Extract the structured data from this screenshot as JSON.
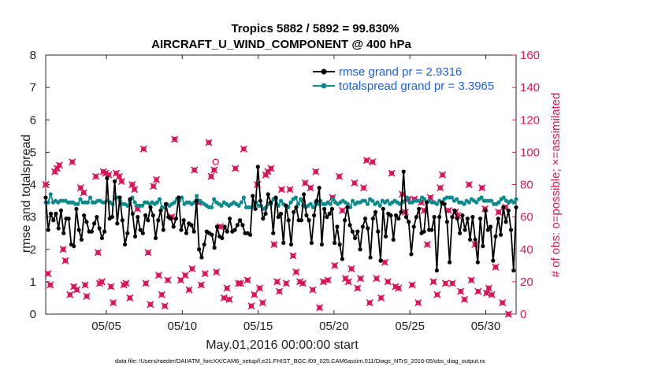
{
  "chart_data": {
    "type": "line",
    "title_line1": "Tropics 5882 / 5892 = 99.830%",
    "title_line2": "AIRCRAFT_U_WIND_COMPONENT @ 400 hPa",
    "xlabel": "May.01,2016 00:00:00 start",
    "ylabel_left": "rmse and totalspread",
    "ylabel_right": "# of obs: o=possible; ×=assimilated",
    "footnote": "data file: /Users/raeder/DAI/ATM_forcXX/CAM6_setup/f.e21.FHIST_BGC.f09_025.CAM6assim.011/Diags_NTrS_2016-05/obs_diag_output.nc",
    "xlim": [
      1,
      32
    ],
    "ylim_left": [
      0,
      8
    ],
    "ylim_right": [
      0,
      160
    ],
    "x_ticks": [
      5,
      10,
      15,
      20,
      25,
      30
    ],
    "x_tick_labels": [
      "05/05",
      "05/10",
      "05/15",
      "05/20",
      "05/25",
      "05/30"
    ],
    "y_left_ticks": [
      "0",
      "1",
      "2",
      "3",
      "4",
      "5",
      "6",
      "7",
      "8"
    ],
    "y_right_ticks": [
      "0",
      "20",
      "40",
      "60",
      "80",
      "100",
      "120",
      "140",
      "160"
    ],
    "colors": {
      "rmse": "#000000",
      "spread": "#0e8a8a",
      "obs": "#d6175a",
      "legend_text": "#1f5fd6"
    },
    "series": [
      {
        "name": "rmse grand pr = 2.9316",
        "axis": "left",
        "values": [
          3.6,
          2.6,
          3.1,
          2.9,
          3.1,
          2.65,
          3.2,
          2.5,
          2.95,
          2.95,
          2.15,
          2.1,
          3.25,
          2.6,
          2.3,
          3.05,
          2.85,
          2.55,
          2.55,
          2.8,
          3.0,
          2.65,
          2.35,
          2.55,
          4.2,
          2.95,
          3.0,
          4.1,
          2.8,
          3.6,
          2.9,
          2.15,
          2.5,
          3.55,
          3.1,
          2.4,
          3.0,
          2.6,
          2.5,
          3.05,
          2.9,
          3.3,
          3.05,
          2.35,
          2.9,
          3.2,
          2.6,
          3.4,
          3.0,
          2.95,
          2.7,
          2.95,
          3.6,
          2.6,
          2.9,
          2.5,
          2.8,
          2.75,
          2.55,
          3.5,
          2.0,
          1.75,
          2.15,
          2.55,
          2.5,
          2.45,
          2.05,
          2.7,
          2.4,
          2.35,
          2.7,
          2.55,
          2.95,
          2.55,
          2.6,
          2.75,
          2.9,
          2.75,
          2.5,
          2.5,
          2.45,
          3.65,
          3.25,
          4.55,
          3.5,
          2.95,
          3.1,
          3.7,
          3.45,
          2.5,
          3.6,
          3.0,
          3.1,
          2.2,
          3.35,
          2.9,
          2.15,
          3.15,
          3.3,
          2.9,
          2.9,
          3.7,
          3.05,
          2.9,
          2.2,
          3.05,
          3.5,
          3.9,
          2.15,
          3.25,
          3.0,
          3.1,
          3.25,
          2.2,
          2.7,
          2.15,
          1.7,
          2.9,
          3.3,
          2.75,
          2.55,
          2.35,
          2.55,
          2.0,
          2.7,
          2.95,
          2.65,
          1.75,
          2.95,
          3.15,
          2.55,
          1.65,
          3.25,
          2.4,
          3.1,
          3.05,
          2.3,
          3.05,
          2.95,
          3.15,
          4.4,
          3.0,
          2.85,
          1.85,
          2.7,
          3.0,
          3.25,
          2.5,
          2.55,
          3.45,
          2.6,
          2.6,
          3.0,
          1.35,
          3.0,
          3.45,
          3.4,
          2.85,
          1.6,
          3.0,
          3.2,
          2.95,
          2.5,
          3.05,
          2.6,
          2.95,
          2.3,
          3.0,
          2.3,
          1.6,
          2.95,
          2.1,
          3.2,
          2.6,
          2.7,
          1.65,
          2.4,
          2.95,
          2.45,
          3.3,
          2.85,
          3.2,
          2.6,
          1.35,
          3.3
        ],
        "values_note": "rmse sampled at 0.25-day intervals; sequence truncated visually to plotted range"
      },
      {
        "name": "totalspread grand pr = 3.3965",
        "axis": "left",
        "values": [
          3.45,
          3.45,
          3.7,
          3.45,
          3.5,
          3.45,
          3.5,
          3.5,
          3.5,
          3.45,
          3.45,
          3.45,
          3.4,
          3.4,
          3.55,
          3.45,
          3.45,
          3.45,
          3.6,
          3.45,
          3.45,
          3.5,
          3.5,
          3.45,
          3.45,
          3.5,
          3.45,
          3.4,
          3.6,
          3.6,
          3.5,
          3.4,
          3.4,
          3.35,
          3.5,
          3.6,
          3.45,
          3.35,
          3.35,
          3.35,
          3.45,
          3.45,
          3.4,
          3.45,
          3.4,
          3.45,
          3.55,
          3.3,
          3.3,
          3.4,
          3.35,
          3.4,
          3.45,
          3.55,
          3.5,
          3.6,
          3.4,
          3.45,
          3.45,
          3.4,
          3.45,
          3.65,
          3.5,
          3.45,
          3.4,
          3.35,
          3.3,
          3.3,
          3.55,
          3.45,
          3.4,
          3.35,
          3.45,
          3.4,
          3.35,
          3.4,
          3.45,
          3.4,
          3.35,
          3.45,
          3.6,
          3.3,
          3.3,
          3.3,
          3.35,
          3.45,
          3.35,
          3.35,
          3.25,
          3.3,
          3.4,
          3.4,
          3.55,
          3.55,
          3.35,
          3.5,
          3.4,
          3.35,
          3.3,
          3.45,
          3.55,
          3.6,
          3.4,
          3.55,
          3.35,
          3.3,
          3.35,
          3.4,
          3.3,
          3.45,
          3.4,
          3.5,
          3.4,
          3.4,
          3.45,
          3.4,
          3.55,
          3.45,
          3.4,
          3.45,
          3.5,
          3.45,
          3.4,
          3.3,
          3.5,
          3.4,
          3.45,
          3.45,
          3.5,
          3.5,
          3.4,
          3.55,
          3.5,
          3.4,
          3.45,
          3.35,
          3.5,
          3.45,
          3.5,
          3.4,
          3.45,
          3.5,
          3.45,
          3.4,
          3.45,
          3.5,
          3.6,
          3.45,
          3.45,
          3.5,
          3.5,
          3.5,
          3.6,
          3.55,
          3.45,
          3.5,
          3.45,
          3.45,
          3.4,
          3.5,
          3.4,
          3.55,
          3.6,
          3.6,
          3.6,
          3.5,
          3.55,
          3.45,
          3.45,
          3.4,
          3.5,
          3.45,
          3.55,
          3.5,
          3.45,
          3.55,
          3.6,
          3.5,
          3.5,
          3.5,
          3.5,
          3.4,
          3.4,
          3.45,
          3.55,
          3.6,
          3.5,
          3.45,
          3.5,
          3.45,
          3.55
        ]
      }
    ],
    "obs_assimilated_points": [
      [
        1.0,
        80
      ],
      [
        1.15,
        25
      ],
      [
        1.3,
        18
      ],
      [
        1.6,
        88
      ],
      [
        1.75,
        90
      ],
      [
        1.9,
        92
      ],
      [
        2.15,
        40
      ],
      [
        2.3,
        33
      ],
      [
        2.6,
        12
      ],
      [
        2.75,
        94
      ],
      [
        2.85,
        17
      ],
      [
        3.05,
        15
      ],
      [
        3.3,
        78
      ],
      [
        3.5,
        75
      ],
      [
        3.6,
        18
      ],
      [
        3.7,
        11
      ],
      [
        4.3,
        85
      ],
      [
        4.45,
        38
      ],
      [
        4.55,
        19
      ],
      [
        4.7,
        20
      ],
      [
        4.8,
        88
      ],
      [
        4.95,
        87
      ],
      [
        5.15,
        86
      ],
      [
        5.3,
        17
      ],
      [
        5.45,
        7
      ],
      [
        5.65,
        87
      ],
      [
        5.85,
        85
      ],
      [
        6.0,
        82
      ],
      [
        6.15,
        18
      ],
      [
        6.3,
        19
      ],
      [
        6.55,
        10
      ],
      [
        6.7,
        80
      ],
      [
        6.85,
        77
      ],
      [
        7.05,
        65
      ],
      [
        7.45,
        102
      ],
      [
        7.6,
        19
      ],
      [
        7.75,
        38
      ],
      [
        7.9,
        6
      ],
      [
        8.1,
        79
      ],
      [
        8.3,
        83
      ],
      [
        8.45,
        24
      ],
      [
        8.65,
        12
      ],
      [
        8.85,
        5
      ],
      [
        9.05,
        21
      ],
      [
        9.3,
        60
      ],
      [
        9.5,
        108
      ],
      [
        9.9,
        21
      ],
      [
        10.2,
        24
      ],
      [
        10.45,
        15
      ],
      [
        10.65,
        28
      ],
      [
        10.8,
        89
      ],
      [
        11.05,
        69
      ],
      [
        11.25,
        18
      ],
      [
        11.5,
        25
      ],
      [
        11.75,
        106
      ],
      [
        11.9,
        85
      ],
      [
        12.1,
        89
      ],
      [
        12.25,
        26
      ],
      [
        12.5,
        54
      ],
      [
        12.75,
        10
      ],
      [
        12.95,
        16
      ],
      [
        13.1,
        9
      ],
      [
        13.5,
        90
      ],
      [
        13.7,
        19
      ],
      [
        13.85,
        19
      ],
      [
        14.05,
        102
      ],
      [
        14.3,
        21
      ],
      [
        14.55,
        5
      ],
      [
        14.75,
        12
      ],
      [
        14.95,
        80
      ],
      [
        15.1,
        16
      ],
      [
        15.3,
        7
      ],
      [
        15.5,
        86
      ],
      [
        15.65,
        88
      ],
      [
        15.85,
        90
      ],
      [
        16.05,
        43
      ],
      [
        16.25,
        20
      ],
      [
        16.4,
        14
      ],
      [
        16.55,
        77
      ],
      [
        16.85,
        19
      ],
      [
        17.1,
        77
      ],
      [
        17.3,
        36
      ],
      [
        17.5,
        26
      ],
      [
        17.75,
        20
      ],
      [
        17.95,
        19
      ],
      [
        18.1,
        81
      ],
      [
        18.45,
        78
      ],
      [
        18.6,
        15
      ],
      [
        18.8,
        88
      ],
      [
        19.05,
        4
      ],
      [
        19.3,
        20
      ],
      [
        19.6,
        21
      ],
      [
        19.9,
        72
      ],
      [
        20.05,
        30
      ],
      [
        20.35,
        85
      ],
      [
        20.55,
        64
      ],
      [
        20.75,
        22
      ],
      [
        20.95,
        20
      ],
      [
        21.15,
        28
      ],
      [
        21.35,
        81
      ],
      [
        21.55,
        16
      ],
      [
        21.75,
        22
      ],
      [
        21.95,
        78
      ],
      [
        22.15,
        95
      ],
      [
        22.35,
        7
      ],
      [
        22.55,
        94
      ],
      [
        22.8,
        22
      ],
      [
        23.1,
        10
      ],
      [
        23.35,
        32
      ],
      [
        23.55,
        20
      ],
      [
        23.8,
        87
      ],
      [
        24.05,
        17
      ],
      [
        24.25,
        16
      ],
      [
        24.5,
        74
      ],
      [
        24.7,
        63
      ],
      [
        24.9,
        71
      ],
      [
        25.15,
        18
      ],
      [
        25.3,
        71
      ],
      [
        25.55,
        7
      ],
      [
        25.75,
        69
      ],
      [
        25.95,
        64
      ],
      [
        26.15,
        43
      ],
      [
        26.35,
        72
      ],
      [
        26.55,
        20
      ],
      [
        26.8,
        12
      ],
      [
        27.0,
        78
      ],
      [
        27.15,
        86
      ],
      [
        27.35,
        19
      ],
      [
        27.55,
        64
      ],
      [
        27.8,
        19
      ],
      [
        28.0,
        63
      ],
      [
        28.15,
        61
      ],
      [
        28.35,
        14
      ],
      [
        28.6,
        9
      ],
      [
        28.9,
        80
      ],
      [
        29.05,
        21
      ],
      [
        29.3,
        43
      ],
      [
        29.5,
        14
      ],
      [
        29.75,
        78
      ],
      [
        29.95,
        65
      ],
      [
        30.05,
        13
      ],
      [
        30.2,
        16
      ],
      [
        30.4,
        12
      ],
      [
        30.65,
        29
      ],
      [
        30.85,
        63
      ],
      [
        31.1,
        7
      ],
      [
        31.3,
        66
      ],
      [
        31.5,
        0
      ]
    ],
    "obs_possible_points": [
      [
        12.2,
        94
      ]
    ]
  }
}
